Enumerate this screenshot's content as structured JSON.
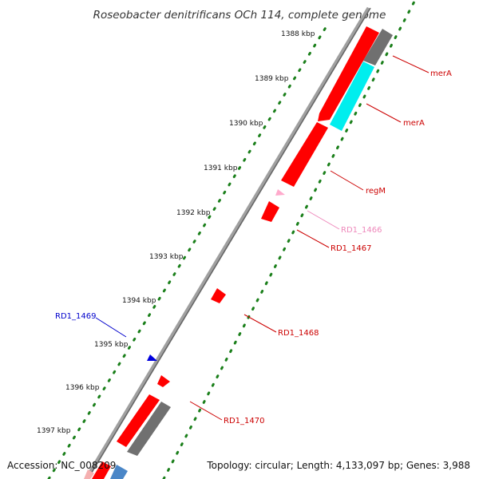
{
  "title": "Roseobacter denitrificans OCh 114, complete genome",
  "footer": {
    "accession": "Accession: NC_008209",
    "summary": "Topology: circular; Length: 4,133,097 bp; Genes: 3,988"
  },
  "colors": {
    "forward_cds": "#ff0000",
    "reverse_cds": "#ff0000",
    "forward_cds_rna_marker": "#00ffff",
    "rna_sense": "#6e6e6e",
    "backbone": "#7f7f7f",
    "tick_ticks": "#1a7f1a",
    "highlight_blue": "#0000cc",
    "highlight_pink": "#ff99cc",
    "steel_blue": "#4a86c7"
  },
  "ticks": [
    {
      "label": "1388 kbp",
      "kbp": 1388
    },
    {
      "label": "1389 kbp",
      "kbp": 1389
    },
    {
      "label": "1390 kbp",
      "kbp": 1390
    },
    {
      "label": "1391 kbp",
      "kbp": 1391
    },
    {
      "label": "1392 kbp",
      "kbp": 1392
    },
    {
      "label": "1393 kbp",
      "kbp": 1393
    },
    {
      "label": "1394 kbp",
      "kbp": 1394
    },
    {
      "label": "1395 kbp",
      "kbp": 1395
    },
    {
      "label": "1396 kbp",
      "kbp": 1396
    },
    {
      "label": "1397 kbp",
      "kbp": 1397
    }
  ],
  "genes": [
    {
      "label": "merA",
      "color": "#cc0000"
    },
    {
      "label": "merA",
      "color": "#cc0000"
    },
    {
      "label": "regM",
      "color": "#cc0000"
    },
    {
      "label": "RD1_1466",
      "color": "#ee88bb"
    },
    {
      "label": "RD1_1467",
      "color": "#cc0000"
    },
    {
      "label": "RD1_1468",
      "color": "#cc0000"
    },
    {
      "label": "RD1_1469",
      "color": "#0000cc"
    },
    {
      "label": "RD1_1470",
      "color": "#cc0000"
    }
  ]
}
